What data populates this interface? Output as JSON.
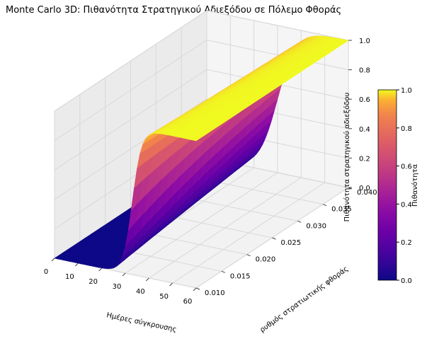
{
  "chart_data": {
    "type": "surface",
    "title": "Monte Carlo 3D: Πιθανότητα Στρατηγικού Αδιεξόδου σε Πόλεμο Φθοράς",
    "xlabel": "Ημέρες σύγκρουσης",
    "ylabel": "ρυθμός στρατιωτικής φθοράς",
    "zlabel": "Πιθανότητα στρατηγικού αδιεξόδου",
    "colorbar_label": "Πιθανότητα",
    "colormap": "plasma",
    "xlim": [
      0,
      60
    ],
    "ylim": [
      0.01,
      0.04
    ],
    "zlim": [
      0,
      1
    ],
    "x_ticks": [
      "0",
      "10",
      "20",
      "30",
      "40",
      "50",
      "60"
    ],
    "y_ticks": [
      "0.010",
      "0.015",
      "0.020",
      "0.025",
      "0.030",
      "0.035",
      "0.040"
    ],
    "z_ticks": [
      "0.0",
      "0.2",
      "0.4",
      "0.6",
      "0.8",
      "1.0"
    ],
    "colorbar_ticks": [
      "0.0",
      "0.2",
      "0.4",
      "0.6",
      "0.8",
      "1.0"
    ],
    "model": {
      "description_free_params": true,
      "midpoint_days_at_low_rate": 33,
      "midpoint_days_at_high_rate": 30,
      "transition_width_days_at_low_rate": 2.0,
      "transition_width_days_at_high_rate": 4.0
    },
    "grid": true
  }
}
